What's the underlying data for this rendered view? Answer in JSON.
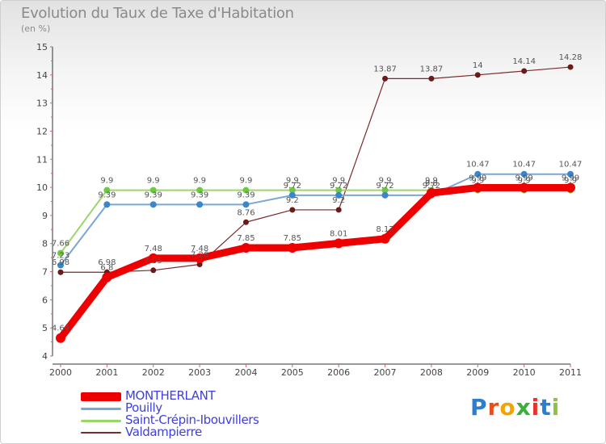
{
  "title": "Evolution du Taux de Taxe d'Habitation",
  "subtitle": "(en %)",
  "logo_text": "Proxiti",
  "logo_colors": [
    "#2a7fd0",
    "#e84e1b",
    "#f2a400",
    "#3cae3c",
    "#e8322c",
    "#2a7fd0",
    "#8bc43f"
  ],
  "chart_data": {
    "type": "line",
    "x": [
      "2000",
      "2001",
      "2002",
      "2003",
      "2004",
      "2005",
      "2006",
      "2007",
      "2008",
      "2009",
      "2010",
      "2011"
    ],
    "ylim": [
      4,
      15
    ],
    "yticks": [
      "4",
      "5",
      "6",
      "7",
      "8",
      "9",
      "10",
      "11",
      "12",
      "13",
      "14",
      "15"
    ],
    "grid": false,
    "legend_position": "bottom-left",
    "series": [
      {
        "name": "MONTHERLANT",
        "color": "#ee0000",
        "values": [
          4.64,
          6.8,
          7.48,
          7.48,
          7.85,
          7.85,
          8.01,
          8.17,
          9.8,
          9.99,
          9.99,
          9.99
        ],
        "labels": [
          "4.64",
          "6.8",
          "7.48",
          "7.48",
          "7.85",
          "7.85",
          "8.01",
          "8.17",
          "9.8",
          "9.99",
          "9.99",
          "9.99"
        ]
      },
      {
        "name": "Pouilly",
        "color": "#7aa7d6",
        "values": [
          7.23,
          9.39,
          9.39,
          9.39,
          9.39,
          9.72,
          9.72,
          9.72,
          9.72,
          10.47,
          10.47,
          10.47
        ],
        "labels": [
          "7.23",
          "9.39",
          "9.39",
          "9.39",
          "9.39",
          "9.72",
          "9.72",
          "9.72",
          "9.72",
          "10.47",
          "10.47",
          "10.47"
        ]
      },
      {
        "name": "Saint-Crépin-Ibouvillers",
        "color": "#9bd66b",
        "values": [
          7.66,
          9.9,
          9.9,
          9.9,
          9.9,
          9.9,
          9.9,
          9.9,
          9.9,
          9.9,
          9.9,
          9.9
        ],
        "labels": [
          "7.66",
          "9.9",
          "9.9",
          "9.9",
          "9.9",
          "9.9",
          "9.9",
          "9.9",
          "9.9",
          "9.9",
          "9.9",
          "9.9"
        ]
      },
      {
        "name": "Valdampierre",
        "color": "#7a2a2a",
        "values": [
          6.98,
          6.98,
          7.05,
          7.26,
          8.76,
          9.2,
          9.2,
          13.87,
          13.87,
          14,
          14.14,
          14.28
        ],
        "labels": [
          "6.98",
          "6.98",
          "7.05",
          "7.26",
          "8.76",
          "9.2",
          "9.2",
          "13.87",
          "13.87",
          "14",
          "14.14",
          "14.28"
        ]
      }
    ]
  }
}
